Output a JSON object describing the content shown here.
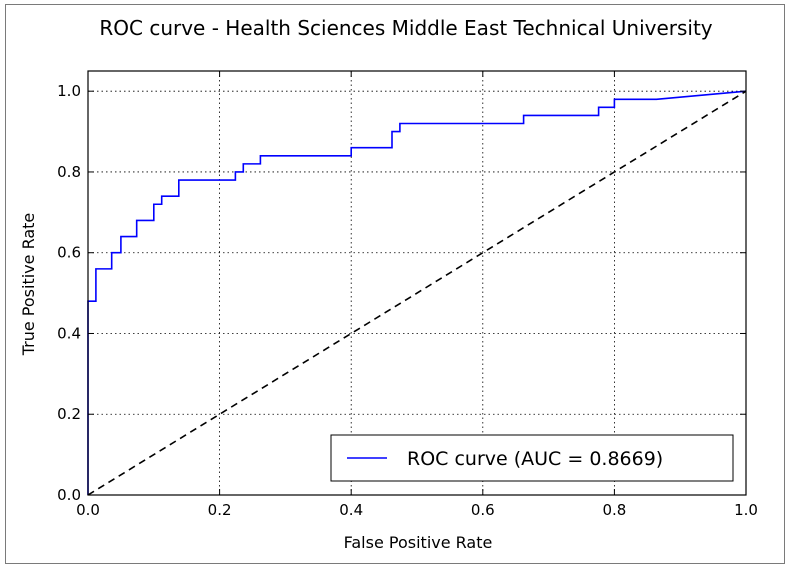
{
  "chart_data": {
    "type": "line",
    "title": "ROC curve - Health Sciences Middle East Technical University",
    "xlabel": "False Positive Rate",
    "ylabel": "True Positive Rate",
    "xlim": [
      0.0,
      1.0
    ],
    "ylim": [
      0.0,
      1.05
    ],
    "x_ticks": [
      "0.0",
      "0.2",
      "0.4",
      "0.6",
      "0.8",
      "1.0"
    ],
    "y_ticks": [
      "0.0",
      "0.2",
      "0.4",
      "0.6",
      "0.8",
      "1.0"
    ],
    "grid": true,
    "legend_position": "lower-right",
    "series": [
      {
        "name": "ROC curve (AUC = 0.8669)",
        "color": "#0000ff",
        "line_style": "solid",
        "x": [
          0.0,
          0.0,
          0.012,
          0.012,
          0.036,
          0.036,
          0.05,
          0.05,
          0.074,
          0.074,
          0.1,
          0.1,
          0.112,
          0.112,
          0.138,
          0.138,
          0.224,
          0.224,
          0.236,
          0.236,
          0.262,
          0.262,
          0.4,
          0.4,
          0.462,
          0.462,
          0.474,
          0.474,
          0.662,
          0.662,
          0.776,
          0.776,
          0.8,
          0.8,
          0.864,
          1.0
        ],
        "y": [
          0.0,
          0.48,
          0.48,
          0.56,
          0.56,
          0.6,
          0.6,
          0.64,
          0.64,
          0.68,
          0.68,
          0.72,
          0.72,
          0.74,
          0.74,
          0.78,
          0.78,
          0.8,
          0.8,
          0.82,
          0.82,
          0.84,
          0.84,
          0.86,
          0.86,
          0.9,
          0.9,
          0.92,
          0.92,
          0.94,
          0.94,
          0.96,
          0.96,
          0.98,
          0.98,
          1.0
        ]
      },
      {
        "name": "",
        "color": "#000000",
        "line_style": "dashed",
        "x": [
          0.0,
          1.0
        ],
        "y": [
          0.0,
          1.0
        ]
      }
    ]
  }
}
